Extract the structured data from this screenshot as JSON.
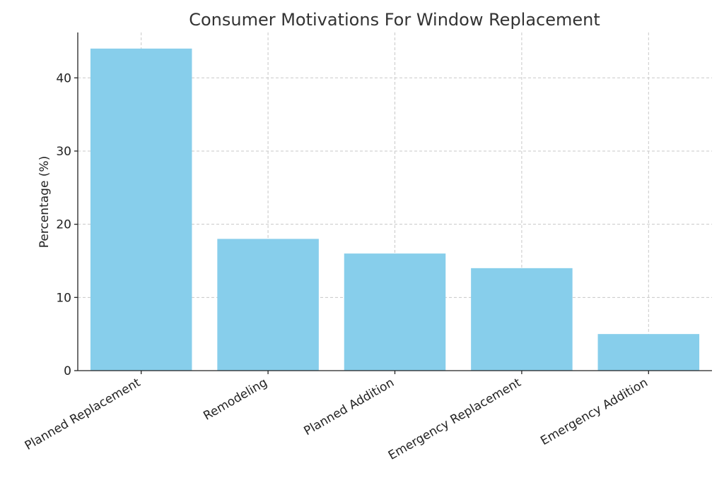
{
  "chart_data": {
    "type": "bar",
    "title": "Consumer Motivations For Window Replacement",
    "xlabel": "",
    "ylabel": "Percentage (%)",
    "categories": [
      "Planned Replacement",
      "Remodeling",
      "Planned Addition",
      "Emergency Replacement",
      "Emergency Addition"
    ],
    "values": [
      44,
      18,
      16,
      14,
      5
    ],
    "ylim": [
      0,
      46.2
    ],
    "yticks": [
      0,
      10,
      20,
      30,
      40
    ],
    "grid": true,
    "bar_color": "#87CEEB",
    "x_tick_rotation_deg": -30
  }
}
